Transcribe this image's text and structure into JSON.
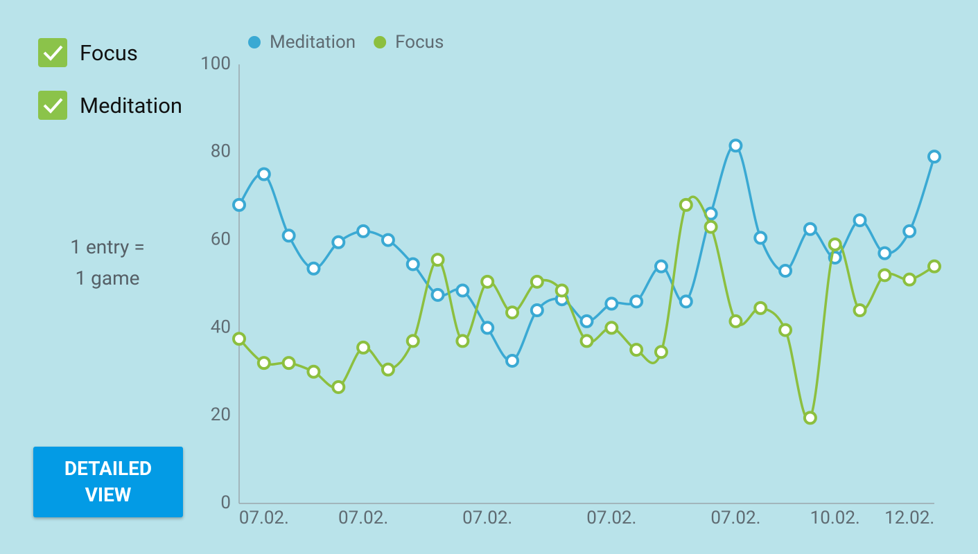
{
  "filters": [
    {
      "label": "Focus",
      "checked": true
    },
    {
      "label": "Meditation",
      "checked": true
    }
  ],
  "note": [
    "1 entry =",
    "1 game"
  ],
  "button": "DETAILED VIEW",
  "chart_data": {
    "type": "line",
    "smooth": true,
    "legend": "top",
    "categories": [
      null,
      "07.02.",
      null,
      null,
      null,
      "07.02.",
      null,
      null,
      null,
      null,
      "07.02.",
      null,
      null,
      null,
      null,
      "07.02.",
      null,
      null,
      null,
      null,
      "07.02.",
      null,
      null,
      null,
      "10.02.",
      null,
      null,
      "12.02.",
      null
    ],
    "series": [
      {
        "name": "Meditation",
        "color": "#3aa9d3",
        "values": [
          68,
          75,
          61,
          53.5,
          59.5,
          62,
          60,
          54.5,
          47.5,
          48.5,
          40,
          32.5,
          44,
          46.5,
          41.5,
          45.5,
          46,
          54,
          46,
          66,
          81.5,
          60.5,
          53,
          62.5,
          56,
          64.5,
          57,
          62,
          79
        ]
      },
      {
        "name": "Focus",
        "color": "#8cbf3f",
        "values": [
          37.5,
          32,
          32,
          30,
          26.5,
          35.5,
          30.5,
          37,
          55.5,
          37,
          50.5,
          43.5,
          50.5,
          48.5,
          37,
          40,
          35,
          34.5,
          68,
          63,
          41.5,
          44.5,
          39.5,
          19.5,
          59,
          44,
          52,
          51,
          54
        ]
      }
    ],
    "ylim": [
      0,
      100
    ],
    "yticks": [
      0,
      20,
      40,
      60,
      80,
      100
    ],
    "grid": false
  }
}
